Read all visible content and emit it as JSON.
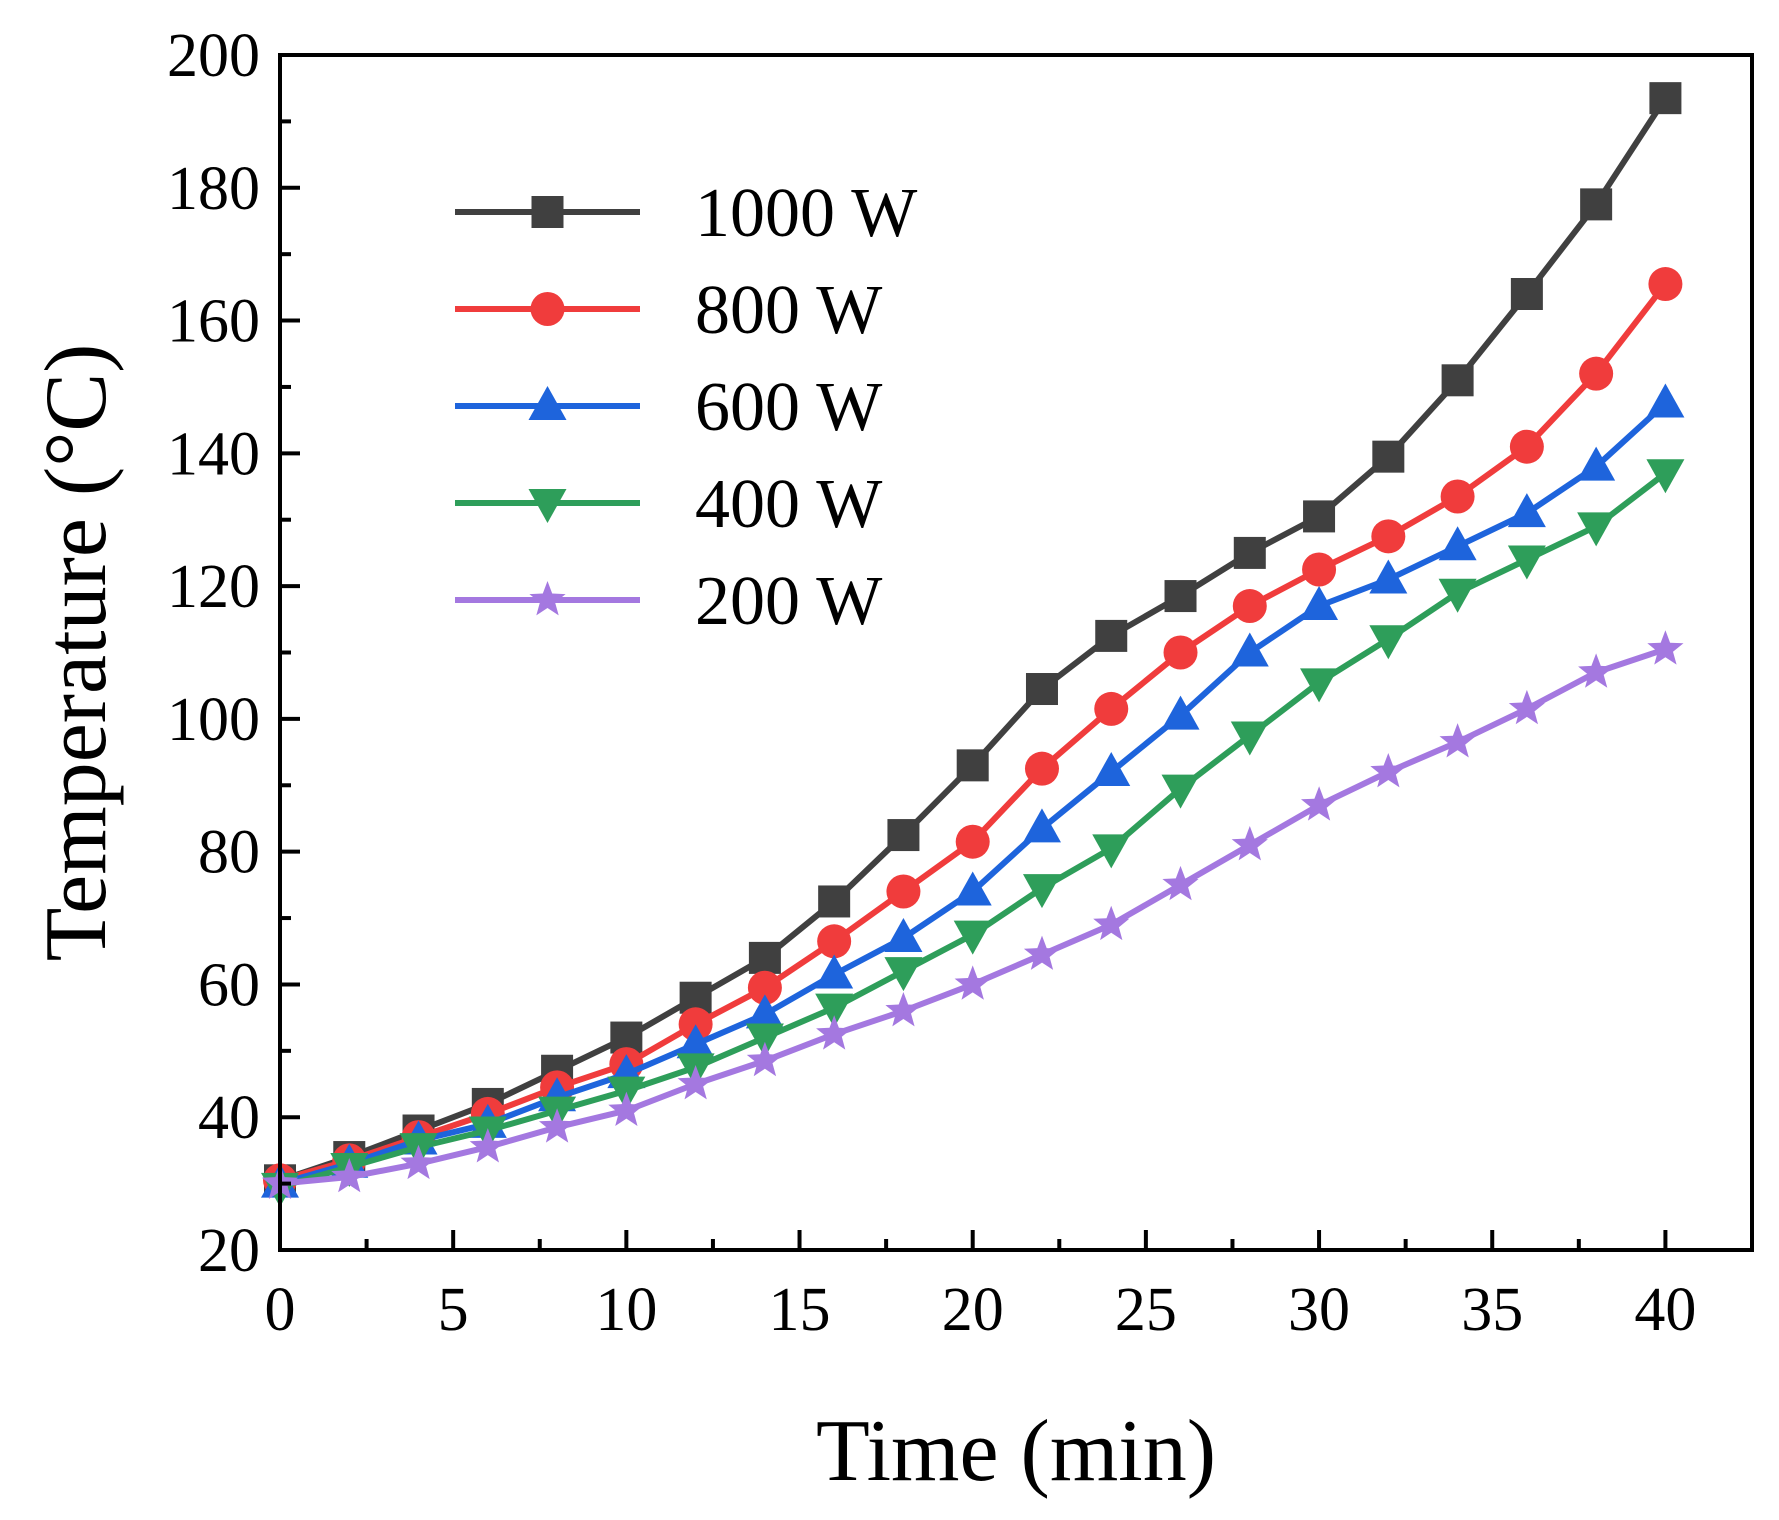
{
  "chart_data": {
    "type": "line",
    "xlabel": "Time (min)",
    "ylabel": "Temperature (°C)",
    "xlim": [
      0,
      42.5
    ],
    "ylim": [
      20,
      200
    ],
    "xticks": [
      0,
      5,
      10,
      15,
      20,
      25,
      30,
      35,
      40
    ],
    "yticks": [
      20,
      40,
      60,
      80,
      100,
      120,
      140,
      160,
      180,
      200
    ],
    "grid": false,
    "legend_position": "top-left",
    "x": [
      0,
      2,
      4,
      6,
      8,
      10,
      12,
      14,
      16,
      18,
      20,
      22,
      24,
      26,
      28,
      30,
      32,
      34,
      36,
      38,
      40
    ],
    "series": [
      {
        "name": "1000 W",
        "color": "#404040",
        "marker": "square",
        "values": [
          30.5,
          34,
          38,
          42,
          47,
          52,
          58,
          64,
          72.5,
          82.5,
          93,
          104.5,
          112.5,
          118.5,
          125,
          130.5,
          139.5,
          151,
          164,
          177.5,
          193.5
        ]
      },
      {
        "name": "800 W",
        "color": "#f03c3c",
        "marker": "circle",
        "values": [
          30.5,
          33.5,
          37,
          40.5,
          44.5,
          48,
          54,
          59.5,
          66.5,
          74,
          81.5,
          92.5,
          101.5,
          110,
          117,
          122.5,
          127.5,
          133.5,
          141,
          152,
          165.5
        ]
      },
      {
        "name": "600 W",
        "color": "#1e64dc",
        "marker": "triangle-up",
        "values": [
          30,
          33,
          36.5,
          39,
          43,
          46.5,
          51,
          55.5,
          61.5,
          67,
          74,
          83.5,
          92,
          100.5,
          110,
          117,
          121,
          126,
          131,
          138,
          147.5
        ]
      },
      {
        "name": "400 W",
        "color": "#2e9e5a",
        "marker": "triangle-down",
        "values": [
          29.5,
          32.5,
          35.5,
          38,
          41,
          44,
          47.5,
          52,
          56.5,
          62,
          67.5,
          74.5,
          80.5,
          89.5,
          97.5,
          105.5,
          112,
          119,
          124,
          129,
          137
        ]
      },
      {
        "name": "200 W",
        "color": "#a478e0",
        "marker": "star",
        "values": [
          30,
          31,
          33,
          35.5,
          38.5,
          41,
          45,
          48.5,
          52.5,
          56,
          60,
          64.5,
          69,
          75,
          81,
          87,
          92,
          96.5,
          101.5,
          107,
          110.5
        ]
      }
    ]
  }
}
